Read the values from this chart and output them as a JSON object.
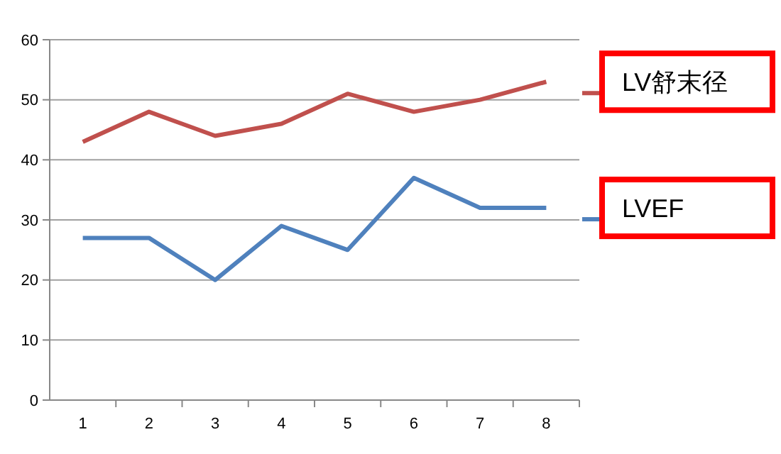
{
  "chart_data": {
    "type": "line",
    "categories": [
      "1",
      "2",
      "3",
      "4",
      "5",
      "6",
      "7",
      "8"
    ],
    "series": [
      {
        "name": "LV舒末径",
        "color": "#c0504d",
        "values": [
          43,
          48,
          44,
          46,
          51,
          48,
          50,
          53
        ]
      },
      {
        "name": "LVEF",
        "color": "#4f81bd",
        "values": [
          27,
          27,
          20,
          29,
          25,
          37,
          32,
          32
        ]
      }
    ],
    "ylim": [
      0,
      60
    ],
    "yticks": [
      0,
      10,
      20,
      30,
      40,
      50,
      60
    ],
    "grid": "y",
    "legend": "right",
    "marker": "none",
    "line_style": "solid"
  }
}
